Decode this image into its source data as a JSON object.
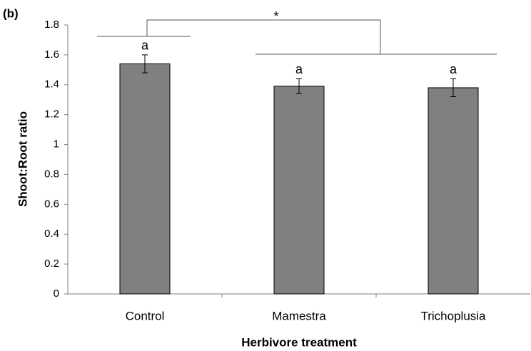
{
  "chart_data": {
    "type": "bar",
    "panel_label": "(b)",
    "ylabel": "Shoot:Root ratio",
    "xlabel": "Herbivore treatment",
    "categories": [
      "Control",
      "Mamestra",
      "Trichoplusia"
    ],
    "values": [
      1.54,
      1.39,
      1.38
    ],
    "errors": [
      0.06,
      0.05,
      0.06
    ],
    "letters": [
      "a",
      "a",
      "a"
    ],
    "significance": "*",
    "color": "#808080",
    "ylim": [
      0,
      1.8
    ],
    "yticks": [
      0,
      0.2,
      0.4,
      0.6,
      0.8,
      1,
      1.2,
      1.4,
      1.6,
      1.8
    ]
  }
}
